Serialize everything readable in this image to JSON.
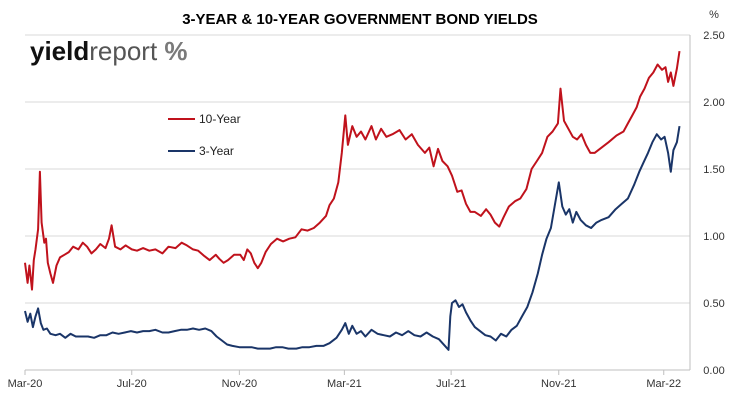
{
  "chart_data": {
    "type": "line",
    "title": "3-YEAR & 10-YEAR GOVERNMENT BOND YIELDS",
    "y_unit": "%",
    "ylim": [
      0,
      2.5
    ],
    "y_ticks": [
      "0.00",
      "0.50",
      "1.00",
      "1.50",
      "2.00",
      "2.50"
    ],
    "y_axis_side": "right",
    "x_ticks": [
      {
        "label": "Mar-20",
        "date": "2020-03-01"
      },
      {
        "label": "Jul-20",
        "date": "2020-07-01"
      },
      {
        "label": "Nov-20",
        "date": "2020-11-01"
      },
      {
        "label": "Mar-21",
        "date": "2021-03-01"
      },
      {
        "label": "Jul-21",
        "date": "2021-07-01"
      },
      {
        "label": "Nov-21",
        "date": "2021-11-01"
      },
      {
        "label": "Mar-22",
        "date": "2022-03-01"
      }
    ],
    "xlim": [
      "2020-03-01",
      "2022-03-31"
    ],
    "grid": "horizontal",
    "legend_position": "upper-left",
    "logo": "yieldreport %",
    "series": [
      {
        "name": "10-Year",
        "color": "#c0121c",
        "points": [
          [
            "2020-03-01",
            0.8
          ],
          [
            "2020-03-04",
            0.65
          ],
          [
            "2020-03-06",
            0.78
          ],
          [
            "2020-03-09",
            0.6
          ],
          [
            "2020-03-11",
            0.82
          ],
          [
            "2020-03-13",
            0.9
          ],
          [
            "2020-03-16",
            1.05
          ],
          [
            "2020-03-18",
            1.48
          ],
          [
            "2020-03-20",
            1.1
          ],
          [
            "2020-03-23",
            0.95
          ],
          [
            "2020-03-25",
            0.98
          ],
          [
            "2020-03-27",
            0.8
          ],
          [
            "2020-03-30",
            0.72
          ],
          [
            "2020-04-02",
            0.65
          ],
          [
            "2020-04-06",
            0.78
          ],
          [
            "2020-04-10",
            0.84
          ],
          [
            "2020-04-15",
            0.86
          ],
          [
            "2020-04-20",
            0.88
          ],
          [
            "2020-04-25",
            0.92
          ],
          [
            "2020-05-01",
            0.9
          ],
          [
            "2020-05-06",
            0.95
          ],
          [
            "2020-05-11",
            0.92
          ],
          [
            "2020-05-16",
            0.87
          ],
          [
            "2020-05-21",
            0.9
          ],
          [
            "2020-05-26",
            0.94
          ],
          [
            "2020-06-01",
            0.91
          ],
          [
            "2020-06-05",
            0.98
          ],
          [
            "2020-06-08",
            1.08
          ],
          [
            "2020-06-12",
            0.92
          ],
          [
            "2020-06-18",
            0.9
          ],
          [
            "2020-06-24",
            0.93
          ],
          [
            "2020-07-01",
            0.9
          ],
          [
            "2020-07-07",
            0.89
          ],
          [
            "2020-07-14",
            0.91
          ],
          [
            "2020-07-21",
            0.89
          ],
          [
            "2020-07-28",
            0.9
          ],
          [
            "2020-08-05",
            0.87
          ],
          [
            "2020-08-12",
            0.92
          ],
          [
            "2020-08-20",
            0.91
          ],
          [
            "2020-08-27",
            0.95
          ],
          [
            "2020-09-02",
            0.93
          ],
          [
            "2020-09-09",
            0.9
          ],
          [
            "2020-09-15",
            0.89
          ],
          [
            "2020-09-22",
            0.85
          ],
          [
            "2020-09-28",
            0.82
          ],
          [
            "2020-10-05",
            0.86
          ],
          [
            "2020-10-09",
            0.83
          ],
          [
            "2020-10-14",
            0.8
          ],
          [
            "2020-10-19",
            0.82
          ],
          [
            "2020-10-26",
            0.86
          ],
          [
            "2020-11-02",
            0.86
          ],
          [
            "2020-11-06",
            0.82
          ],
          [
            "2020-11-10",
            0.9
          ],
          [
            "2020-11-14",
            0.87
          ],
          [
            "2020-11-18",
            0.8
          ],
          [
            "2020-11-22",
            0.76
          ],
          [
            "2020-11-26",
            0.8
          ],
          [
            "2020-12-01",
            0.88
          ],
          [
            "2020-12-07",
            0.94
          ],
          [
            "2020-12-14",
            0.98
          ],
          [
            "2020-12-21",
            0.96
          ],
          [
            "2020-12-28",
            0.98
          ],
          [
            "2021-01-04",
            0.99
          ],
          [
            "2021-01-11",
            1.05
          ],
          [
            "2021-01-18",
            1.04
          ],
          [
            "2021-01-25",
            1.06
          ],
          [
            "2021-02-01",
            1.1
          ],
          [
            "2021-02-08",
            1.15
          ],
          [
            "2021-02-12",
            1.23
          ],
          [
            "2021-02-17",
            1.28
          ],
          [
            "2021-02-22",
            1.4
          ],
          [
            "2021-02-26",
            1.62
          ],
          [
            "2021-03-02",
            1.9
          ],
          [
            "2021-03-05",
            1.68
          ],
          [
            "2021-03-10",
            1.82
          ],
          [
            "2021-03-15",
            1.74
          ],
          [
            "2021-03-20",
            1.78
          ],
          [
            "2021-03-25",
            1.72
          ],
          [
            "2021-04-01",
            1.82
          ],
          [
            "2021-04-06",
            1.72
          ],
          [
            "2021-04-12",
            1.8
          ],
          [
            "2021-04-18",
            1.74
          ],
          [
            "2021-04-25",
            1.76
          ],
          [
            "2021-05-03",
            1.79
          ],
          [
            "2021-05-10",
            1.72
          ],
          [
            "2021-05-17",
            1.76
          ],
          [
            "2021-05-24",
            1.68
          ],
          [
            "2021-06-01",
            1.62
          ],
          [
            "2021-06-06",
            1.66
          ],
          [
            "2021-06-11",
            1.52
          ],
          [
            "2021-06-16",
            1.65
          ],
          [
            "2021-06-21",
            1.56
          ],
          [
            "2021-06-27",
            1.52
          ],
          [
            "2021-07-02",
            1.45
          ],
          [
            "2021-07-08",
            1.33
          ],
          [
            "2021-07-13",
            1.34
          ],
          [
            "2021-07-18",
            1.24
          ],
          [
            "2021-07-23",
            1.18
          ],
          [
            "2021-07-28",
            1.18
          ],
          [
            "2021-08-04",
            1.15
          ],
          [
            "2021-08-10",
            1.2
          ],
          [
            "2021-08-15",
            1.16
          ],
          [
            "2021-08-20",
            1.1
          ],
          [
            "2021-08-25",
            1.07
          ],
          [
            "2021-08-30",
            1.14
          ],
          [
            "2021-09-05",
            1.22
          ],
          [
            "2021-09-12",
            1.26
          ],
          [
            "2021-09-18",
            1.28
          ],
          [
            "2021-09-25",
            1.35
          ],
          [
            "2021-10-01",
            1.5
          ],
          [
            "2021-10-07",
            1.56
          ],
          [
            "2021-10-13",
            1.62
          ],
          [
            "2021-10-19",
            1.74
          ],
          [
            "2021-10-25",
            1.78
          ],
          [
            "2021-10-31",
            1.84
          ],
          [
            "2021-11-03",
            2.1
          ],
          [
            "2021-11-07",
            1.86
          ],
          [
            "2021-11-12",
            1.8
          ],
          [
            "2021-11-17",
            1.74
          ],
          [
            "2021-11-22",
            1.72
          ],
          [
            "2021-11-27",
            1.76
          ],
          [
            "2021-12-02",
            1.68
          ],
          [
            "2021-12-07",
            1.62
          ],
          [
            "2021-12-12",
            1.62
          ],
          [
            "2021-12-20",
            1.66
          ],
          [
            "2021-12-28",
            1.7
          ],
          [
            "2022-01-06",
            1.75
          ],
          [
            "2022-01-14",
            1.78
          ],
          [
            "2022-01-19",
            1.84
          ],
          [
            "2022-01-24",
            1.9
          ],
          [
            "2022-01-29",
            1.96
          ],
          [
            "2022-02-02",
            2.04
          ],
          [
            "2022-02-07",
            2.1
          ],
          [
            "2022-02-12",
            2.18
          ],
          [
            "2022-02-17",
            2.22
          ],
          [
            "2022-02-22",
            2.28
          ],
          [
            "2022-02-27",
            2.24
          ],
          [
            "2022-03-03",
            2.26
          ],
          [
            "2022-03-06",
            2.15
          ],
          [
            "2022-03-09",
            2.22
          ],
          [
            "2022-03-12",
            2.12
          ],
          [
            "2022-03-16",
            2.25
          ],
          [
            "2022-03-19",
            2.38
          ]
        ]
      },
      {
        "name": "3-Year",
        "color": "#1a3568",
        "points": [
          [
            "2020-03-01",
            0.44
          ],
          [
            "2020-03-04",
            0.36
          ],
          [
            "2020-03-07",
            0.42
          ],
          [
            "2020-03-10",
            0.32
          ],
          [
            "2020-03-13",
            0.4
          ],
          [
            "2020-03-16",
            0.46
          ],
          [
            "2020-03-19",
            0.35
          ],
          [
            "2020-03-22",
            0.3
          ],
          [
            "2020-03-26",
            0.31
          ],
          [
            "2020-03-30",
            0.27
          ],
          [
            "2020-04-05",
            0.26
          ],
          [
            "2020-04-10",
            0.27
          ],
          [
            "2020-04-16",
            0.24
          ],
          [
            "2020-04-22",
            0.27
          ],
          [
            "2020-04-28",
            0.25
          ],
          [
            "2020-05-05",
            0.25
          ],
          [
            "2020-05-12",
            0.25
          ],
          [
            "2020-05-19",
            0.24
          ],
          [
            "2020-05-26",
            0.26
          ],
          [
            "2020-06-02",
            0.26
          ],
          [
            "2020-06-09",
            0.28
          ],
          [
            "2020-06-16",
            0.27
          ],
          [
            "2020-06-23",
            0.28
          ],
          [
            "2020-06-30",
            0.29
          ],
          [
            "2020-07-07",
            0.28
          ],
          [
            "2020-07-14",
            0.29
          ],
          [
            "2020-07-21",
            0.29
          ],
          [
            "2020-07-28",
            0.3
          ],
          [
            "2020-08-05",
            0.28
          ],
          [
            "2020-08-12",
            0.28
          ],
          [
            "2020-08-19",
            0.29
          ],
          [
            "2020-08-26",
            0.3
          ],
          [
            "2020-09-02",
            0.3
          ],
          [
            "2020-09-09",
            0.31
          ],
          [
            "2020-09-16",
            0.3
          ],
          [
            "2020-09-23",
            0.31
          ],
          [
            "2020-09-30",
            0.29
          ],
          [
            "2020-10-06",
            0.25
          ],
          [
            "2020-10-12",
            0.22
          ],
          [
            "2020-10-18",
            0.19
          ],
          [
            "2020-10-24",
            0.18
          ],
          [
            "2020-11-01",
            0.17
          ],
          [
            "2020-11-08",
            0.17
          ],
          [
            "2020-11-15",
            0.17
          ],
          [
            "2020-11-22",
            0.16
          ],
          [
            "2020-11-29",
            0.16
          ],
          [
            "2020-12-06",
            0.16
          ],
          [
            "2020-12-13",
            0.17
          ],
          [
            "2020-12-20",
            0.17
          ],
          [
            "2020-12-27",
            0.16
          ],
          [
            "2021-01-05",
            0.16
          ],
          [
            "2021-01-12",
            0.17
          ],
          [
            "2021-01-20",
            0.17
          ],
          [
            "2021-01-28",
            0.18
          ],
          [
            "2021-02-05",
            0.18
          ],
          [
            "2021-02-12",
            0.2
          ],
          [
            "2021-02-20",
            0.24
          ],
          [
            "2021-02-26",
            0.3
          ],
          [
            "2021-03-02",
            0.35
          ],
          [
            "2021-03-06",
            0.27
          ],
          [
            "2021-03-10",
            0.33
          ],
          [
            "2021-03-15",
            0.27
          ],
          [
            "2021-03-20",
            0.29
          ],
          [
            "2021-03-25",
            0.25
          ],
          [
            "2021-04-01",
            0.3
          ],
          [
            "2021-04-08",
            0.27
          ],
          [
            "2021-04-15",
            0.26
          ],
          [
            "2021-04-22",
            0.25
          ],
          [
            "2021-04-29",
            0.28
          ],
          [
            "2021-05-06",
            0.26
          ],
          [
            "2021-05-13",
            0.29
          ],
          [
            "2021-05-20",
            0.26
          ],
          [
            "2021-05-27",
            0.25
          ],
          [
            "2021-06-03",
            0.28
          ],
          [
            "2021-06-10",
            0.25
          ],
          [
            "2021-06-17",
            0.23
          ],
          [
            "2021-06-24",
            0.18
          ],
          [
            "2021-06-28",
            0.15
          ],
          [
            "2021-06-30",
            0.4
          ],
          [
            "2021-07-02",
            0.5
          ],
          [
            "2021-07-06",
            0.52
          ],
          [
            "2021-07-10",
            0.47
          ],
          [
            "2021-07-14",
            0.49
          ],
          [
            "2021-07-18",
            0.43
          ],
          [
            "2021-07-23",
            0.37
          ],
          [
            "2021-07-28",
            0.32
          ],
          [
            "2021-08-03",
            0.29
          ],
          [
            "2021-08-09",
            0.26
          ],
          [
            "2021-08-15",
            0.25
          ],
          [
            "2021-08-21",
            0.22
          ],
          [
            "2021-08-27",
            0.27
          ],
          [
            "2021-09-02",
            0.25
          ],
          [
            "2021-09-08",
            0.3
          ],
          [
            "2021-09-14",
            0.33
          ],
          [
            "2021-09-20",
            0.4
          ],
          [
            "2021-09-26",
            0.47
          ],
          [
            "2021-10-02",
            0.58
          ],
          [
            "2021-10-08",
            0.72
          ],
          [
            "2021-10-13",
            0.86
          ],
          [
            "2021-10-18",
            0.98
          ],
          [
            "2021-10-23",
            1.06
          ],
          [
            "2021-10-28",
            1.25
          ],
          [
            "2021-11-01",
            1.4
          ],
          [
            "2021-11-05",
            1.22
          ],
          [
            "2021-11-09",
            1.16
          ],
          [
            "2021-11-13",
            1.2
          ],
          [
            "2021-11-17",
            1.1
          ],
          [
            "2021-11-21",
            1.18
          ],
          [
            "2021-11-26",
            1.12
          ],
          [
            "2021-12-02",
            1.08
          ],
          [
            "2021-12-08",
            1.06
          ],
          [
            "2021-12-14",
            1.1
          ],
          [
            "2021-12-20",
            1.12
          ],
          [
            "2021-12-28",
            1.14
          ],
          [
            "2022-01-05",
            1.2
          ],
          [
            "2022-01-12",
            1.24
          ],
          [
            "2022-01-19",
            1.28
          ],
          [
            "2022-01-26",
            1.38
          ],
          [
            "2022-02-01",
            1.48
          ],
          [
            "2022-02-06",
            1.55
          ],
          [
            "2022-02-11",
            1.62
          ],
          [
            "2022-02-16",
            1.7
          ],
          [
            "2022-02-21",
            1.76
          ],
          [
            "2022-02-26",
            1.72
          ],
          [
            "2022-03-02",
            1.74
          ],
          [
            "2022-03-06",
            1.62
          ],
          [
            "2022-03-09",
            1.48
          ],
          [
            "2022-03-12",
            1.64
          ],
          [
            "2022-03-16",
            1.7
          ],
          [
            "2022-03-19",
            1.82
          ]
        ]
      }
    ]
  }
}
